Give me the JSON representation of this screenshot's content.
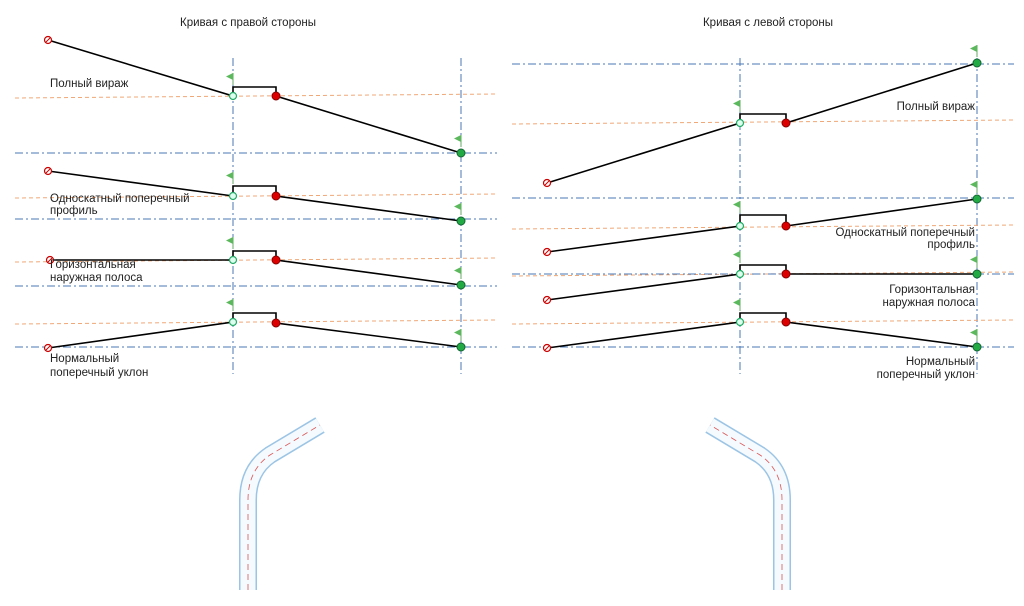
{
  "panels": [
    {
      "title": "Кривая с правой стороны",
      "labels": [
        [
          "Полный вираж"
        ],
        [
          "Односкатный поперечный",
          "профиль"
        ],
        [
          "Горизонтальная",
          "наружная полоса"
        ],
        [
          "Нормальный",
          "поперечный уклон"
        ]
      ]
    },
    {
      "title": "Кривая с левой стороны",
      "labels": [
        [
          "Полный вираж"
        ],
        [
          "Односкатный поперечный",
          "профиль"
        ],
        [
          "Горизонтальная",
          "наружная полоса"
        ],
        [
          "Нормальный",
          "поперечный уклон"
        ]
      ]
    }
  ]
}
